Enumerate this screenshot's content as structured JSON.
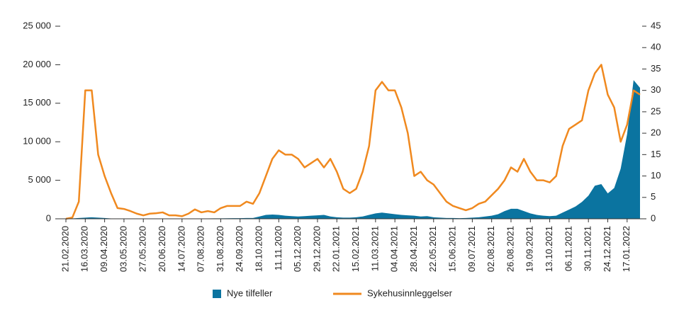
{
  "chart_data": {
    "type": "area-line",
    "categories": [
      "21.02.2020",
      null,
      null,
      "16.03.2020",
      null,
      null,
      "09.04.2020",
      null,
      null,
      "03.05.2020",
      null,
      null,
      "27.05.2020",
      null,
      null,
      "20.06.2020",
      null,
      null,
      "14.07.2020",
      null,
      null,
      "07.08.2020",
      null,
      null,
      "31.08.2020",
      null,
      null,
      "24.09.2020",
      null,
      null,
      "18.10.2020",
      null,
      null,
      "11.11.2020",
      null,
      null,
      "05.12.2020",
      null,
      null,
      "29.12.2020",
      null,
      null,
      "22.01.2021",
      null,
      null,
      "15.02.2021",
      null,
      null,
      "11.03.2021",
      null,
      null,
      "04.04.2021",
      null,
      null,
      "28.04.2021",
      null,
      null,
      "22.05.2021",
      null,
      null,
      "15.06.2021",
      null,
      null,
      "09.07.2021",
      null,
      null,
      "02.08.2021",
      null,
      null,
      "26.08.2021",
      null,
      null,
      "19.09.2021",
      null,
      null,
      "13.10.2021",
      null,
      null,
      "06.11.2021",
      null,
      null,
      "30.11.2021",
      null,
      null,
      "24.12.2021",
      null,
      null,
      "17.01.2022",
      null,
      null
    ],
    "series": [
      {
        "name": "Nye tilfeller",
        "color": "#0b74a0",
        "axis": "y",
        "values": [
          0,
          50,
          100,
          150,
          200,
          150,
          100,
          50,
          40,
          30,
          30,
          30,
          30,
          30,
          30,
          30,
          30,
          30,
          30,
          40,
          50,
          50,
          50,
          60,
          60,
          70,
          80,
          80,
          100,
          100,
          300,
          500,
          550,
          500,
          400,
          350,
          300,
          350,
          400,
          450,
          500,
          300,
          200,
          150,
          150,
          200,
          300,
          500,
          700,
          800,
          700,
          600,
          500,
          450,
          400,
          300,
          350,
          200,
          150,
          100,
          100,
          80,
          100,
          150,
          200,
          300,
          400,
          600,
          1000,
          1300,
          1300,
          1000,
          700,
          500,
          400,
          350,
          400,
          800,
          1200,
          1600,
          2200,
          3000,
          4300,
          4500,
          3300,
          4000,
          6500,
          11000,
          18000,
          17000
        ]
      },
      {
        "name": "Sykehusinnleggelser",
        "color": "#f0891f",
        "axis": "y2",
        "values": [
          0,
          0.3,
          4,
          30,
          30,
          15,
          10,
          6,
          2.5,
          2.3,
          1.8,
          1.2,
          0.8,
          1.2,
          1.3,
          1.5,
          0.8,
          0.8,
          0.6,
          1.2,
          2.2,
          1.5,
          1.8,
          1.5,
          2.5,
          3,
          3,
          3,
          4,
          3.5,
          6,
          10,
          14,
          16,
          15,
          15,
          14,
          12,
          13,
          14,
          12,
          14,
          11,
          7,
          6,
          7,
          11,
          17,
          30,
          32,
          30,
          30,
          26,
          20,
          10,
          11,
          9,
          8,
          6,
          4,
          3,
          2.5,
          2,
          2.5,
          3.5,
          4,
          5.5,
          7,
          9,
          12,
          11,
          14,
          11,
          9,
          9,
          8.5,
          10,
          17,
          21,
          22,
          23,
          30,
          34,
          36,
          29,
          26,
          18,
          22,
          30,
          29
        ]
      }
    ],
    "ylim": [
      0,
      25000
    ],
    "yticks": [
      0,
      {
        "value": 5000,
        "label": "5 000"
      },
      {
        "value": 10000,
        "label": "10 000"
      },
      {
        "value": 15000,
        "label": "15 000"
      },
      {
        "value": 20000,
        "label": "20 000"
      },
      {
        "value": 25000,
        "label": "25 000"
      }
    ],
    "y2lim": [
      0,
      45
    ],
    "y2ticks": [
      0,
      5,
      10,
      15,
      20,
      25,
      30,
      35,
      40,
      45
    ],
    "legend": "bottom"
  }
}
